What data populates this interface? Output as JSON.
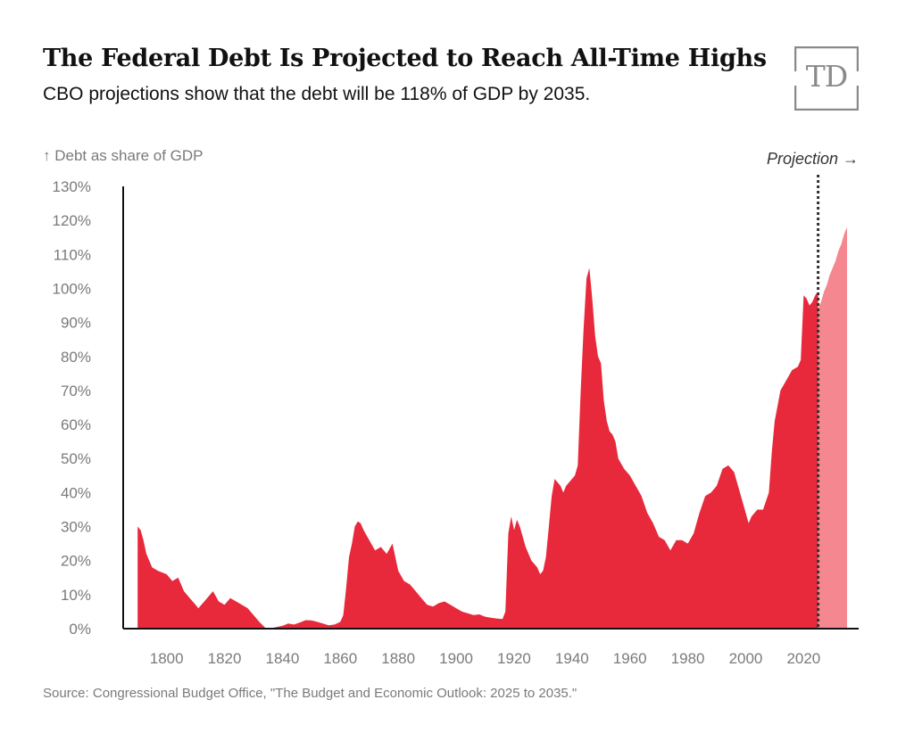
{
  "header": {
    "title": "The Federal Debt Is Projected to Reach All-Time Highs",
    "subtitle": "CBO projections show that the debt will be 118% of GDP by 2035.",
    "logo_text": "TD"
  },
  "footer": {
    "source": "Source: Congressional Budget Office, \"The Budget and Economic Outlook: 2025 to 2035.\""
  },
  "colors": {
    "historical": "#e8293b",
    "projection": "#f4878f",
    "axis": "#111111",
    "divider": "#333333",
    "logo": "#8a8a8a"
  },
  "chart_data": {
    "type": "area",
    "ylabel": "↑ Debt as share of GDP",
    "xlabel": "",
    "xlim": [
      1785,
      2039
    ],
    "ylim": [
      0,
      130
    ],
    "y_ticks": [
      0,
      10,
      20,
      30,
      40,
      50,
      60,
      70,
      80,
      90,
      100,
      110,
      120,
      130
    ],
    "y_tick_labels": [
      "0%",
      "10%",
      "20%",
      "30%",
      "40%",
      "50%",
      "60%",
      "70%",
      "80%",
      "90%",
      "100%",
      "110%",
      "120%",
      "130%"
    ],
    "x_ticks": [
      1800,
      1820,
      1840,
      1860,
      1880,
      1900,
      1920,
      1940,
      1960,
      1980,
      2000,
      2020
    ],
    "grid": false,
    "projection_start": 2025,
    "projection_label": "Projection →",
    "series": [
      {
        "kind": "historical",
        "points": [
          [
            1790,
            30
          ],
          [
            1791,
            29
          ],
          [
            1792,
            26
          ],
          [
            1793,
            22
          ],
          [
            1795,
            18
          ],
          [
            1797,
            17
          ],
          [
            1800,
            16
          ],
          [
            1802,
            14
          ],
          [
            1804,
            15
          ],
          [
            1806,
            11
          ],
          [
            1808,
            9
          ],
          [
            1810,
            7
          ],
          [
            1811,
            6
          ],
          [
            1812,
            7
          ],
          [
            1814,
            9
          ],
          [
            1816,
            11
          ],
          [
            1818,
            8
          ],
          [
            1820,
            7
          ],
          [
            1822,
            9
          ],
          [
            1824,
            8
          ],
          [
            1826,
            7
          ],
          [
            1828,
            6
          ],
          [
            1830,
            4
          ],
          [
            1832,
            2
          ],
          [
            1834,
            0.3
          ],
          [
            1836,
            0.1
          ],
          [
            1838,
            0.5
          ],
          [
            1840,
            0.8
          ],
          [
            1842,
            1.5
          ],
          [
            1844,
            1.2
          ],
          [
            1846,
            1.8
          ],
          [
            1848,
            2.5
          ],
          [
            1850,
            2.4
          ],
          [
            1852,
            2
          ],
          [
            1854,
            1.5
          ],
          [
            1856,
            1
          ],
          [
            1858,
            1.2
          ],
          [
            1860,
            2
          ],
          [
            1861,
            4
          ],
          [
            1862,
            12
          ],
          [
            1863,
            21
          ],
          [
            1864,
            25
          ],
          [
            1865,
            30
          ],
          [
            1866,
            31.5
          ],
          [
            1867,
            31
          ],
          [
            1868,
            29
          ],
          [
            1870,
            26
          ],
          [
            1872,
            23
          ],
          [
            1874,
            24
          ],
          [
            1876,
            22
          ],
          [
            1878,
            25
          ],
          [
            1880,
            17
          ],
          [
            1882,
            14
          ],
          [
            1884,
            13
          ],
          [
            1886,
            11
          ],
          [
            1888,
            9
          ],
          [
            1890,
            7
          ],
          [
            1892,
            6.5
          ],
          [
            1894,
            7.5
          ],
          [
            1896,
            8
          ],
          [
            1898,
            7
          ],
          [
            1900,
            6
          ],
          [
            1902,
            5
          ],
          [
            1904,
            4.5
          ],
          [
            1906,
            4
          ],
          [
            1908,
            4.2
          ],
          [
            1910,
            3.5
          ],
          [
            1912,
            3.2
          ],
          [
            1914,
            3
          ],
          [
            1916,
            2.8
          ],
          [
            1917,
            5
          ],
          [
            1918,
            28
          ],
          [
            1919,
            33
          ],
          [
            1920,
            29
          ],
          [
            1921,
            32
          ],
          [
            1922,
            30
          ],
          [
            1924,
            24
          ],
          [
            1926,
            20
          ],
          [
            1928,
            18
          ],
          [
            1929,
            16
          ],
          [
            1930,
            17
          ],
          [
            1931,
            21
          ],
          [
            1932,
            30
          ],
          [
            1933,
            39
          ],
          [
            1934,
            44
          ],
          [
            1935,
            43
          ],
          [
            1936,
            42
          ],
          [
            1937,
            40
          ],
          [
            1938,
            42
          ],
          [
            1939,
            43
          ],
          [
            1940,
            44
          ],
          [
            1941,
            45
          ],
          [
            1942,
            48
          ],
          [
            1943,
            70
          ],
          [
            1944,
            88
          ],
          [
            1945,
            103
          ],
          [
            1946,
            106
          ],
          [
            1947,
            97
          ],
          [
            1948,
            86
          ],
          [
            1949,
            80
          ],
          [
            1950,
            78
          ],
          [
            1951,
            67
          ],
          [
            1952,
            61
          ],
          [
            1953,
            58
          ],
          [
            1954,
            57
          ],
          [
            1955,
            55
          ],
          [
            1956,
            50
          ],
          [
            1958,
            47
          ],
          [
            1960,
            45
          ],
          [
            1962,
            42
          ],
          [
            1964,
            39
          ],
          [
            1966,
            34
          ],
          [
            1968,
            31
          ],
          [
            1970,
            27
          ],
          [
            1972,
            26
          ],
          [
            1974,
            23
          ],
          [
            1976,
            26
          ],
          [
            1978,
            26
          ],
          [
            1980,
            25
          ],
          [
            1982,
            28
          ],
          [
            1984,
            34
          ],
          [
            1986,
            39
          ],
          [
            1988,
            40
          ],
          [
            1990,
            42
          ],
          [
            1992,
            47
          ],
          [
            1994,
            48
          ],
          [
            1996,
            46
          ],
          [
            1998,
            40
          ],
          [
            2000,
            34
          ],
          [
            2001,
            31
          ],
          [
            2002,
            33
          ],
          [
            2004,
            35
          ],
          [
            2006,
            35
          ],
          [
            2008,
            40
          ],
          [
            2009,
            52
          ],
          [
            2010,
            61
          ],
          [
            2012,
            70
          ],
          [
            2014,
            73
          ],
          [
            2016,
            76
          ],
          [
            2018,
            77
          ],
          [
            2019,
            79
          ],
          [
            2020,
            98
          ],
          [
            2021,
            97
          ],
          [
            2022,
            95
          ],
          [
            2023,
            96
          ],
          [
            2024,
            98
          ],
          [
            2025,
            99
          ]
        ]
      },
      {
        "kind": "projection",
        "points": [
          [
            2025,
            94
          ],
          [
            2026,
            96
          ],
          [
            2027,
            99
          ],
          [
            2028,
            101
          ],
          [
            2029,
            104
          ],
          [
            2030,
            106
          ],
          [
            2031,
            108
          ],
          [
            2032,
            111
          ],
          [
            2033,
            113
          ],
          [
            2034,
            116
          ],
          [
            2035,
            118
          ]
        ]
      }
    ]
  }
}
